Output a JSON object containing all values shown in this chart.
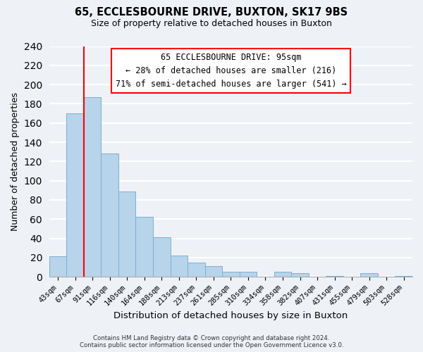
{
  "title": "65, ECCLESBOURNE DRIVE, BUXTON, SK17 9BS",
  "subtitle": "Size of property relative to detached houses in Buxton",
  "xlabel": "Distribution of detached houses by size in Buxton",
  "ylabel": "Number of detached properties",
  "categories": [
    "43sqm",
    "67sqm",
    "91sqm",
    "116sqm",
    "140sqm",
    "164sqm",
    "188sqm",
    "213sqm",
    "237sqm",
    "261sqm",
    "285sqm",
    "310sqm",
    "334sqm",
    "358sqm",
    "382sqm",
    "407sqm",
    "431sqm",
    "455sqm",
    "479sqm",
    "503sqm",
    "528sqm"
  ],
  "values": [
    21,
    170,
    187,
    128,
    89,
    62,
    41,
    22,
    15,
    11,
    5,
    5,
    0,
    5,
    4,
    0,
    1,
    0,
    4,
    0,
    1
  ],
  "bar_color": "#b8d4ea",
  "bar_edge_color": "#7aafd4",
  "vline_x_index": 1,
  "vline_color": "red",
  "ylim": [
    0,
    240
  ],
  "yticks": [
    0,
    20,
    40,
    60,
    80,
    100,
    120,
    140,
    160,
    180,
    200,
    220,
    240
  ],
  "annotation_box_text_line1": "65 ECCLESBOURNE DRIVE: 95sqm",
  "annotation_box_text_line2": "← 28% of detached houses are smaller (216)",
  "annotation_box_text_line3": "71% of semi-detached houses are larger (541) →",
  "annotation_box_color": "white",
  "annotation_box_edge_color": "red",
  "footer_line1": "Contains HM Land Registry data © Crown copyright and database right 2024.",
  "footer_line2": "Contains public sector information licensed under the Open Government Licence v3.0.",
  "background_color": "#eef2f7",
  "grid_color": "#d8e4f0"
}
